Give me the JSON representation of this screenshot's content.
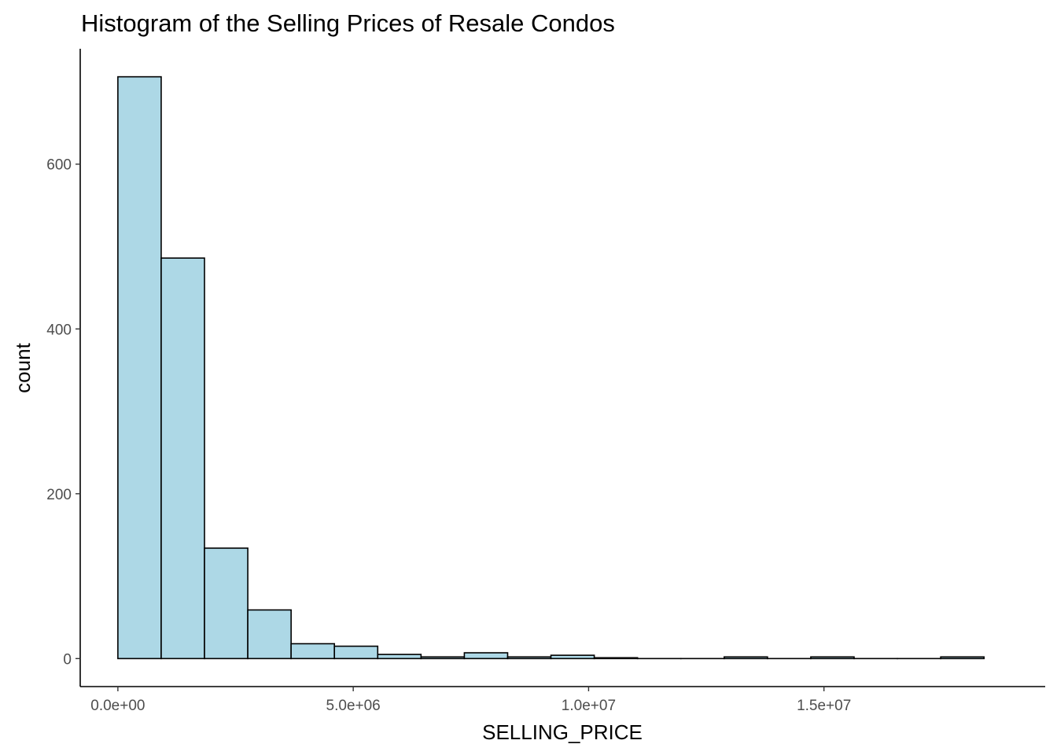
{
  "chart_data": {
    "type": "bar",
    "title": "Histogram of the Selling Prices of Resale Condos",
    "xlabel": "SELLING_PRICE",
    "ylabel": "count",
    "fill_color": "#ADD8E6",
    "outline_color": "#000000",
    "grid": false,
    "legend": "none",
    "bin_width": 920000,
    "xlim": [
      -800000,
      19700000
    ],
    "ylim": [
      -34,
      740
    ],
    "x_ticks": [
      {
        "value": 0,
        "label": "0.0e+00"
      },
      {
        "value": 5000000,
        "label": "5.0e+06"
      },
      {
        "value": 10000000,
        "label": "1.0e+07"
      },
      {
        "value": 15000000,
        "label": "1.5e+07"
      }
    ],
    "y_ticks": [
      {
        "value": 0,
        "label": "0"
      },
      {
        "value": 200,
        "label": "200"
      },
      {
        "value": 400,
        "label": "400"
      },
      {
        "value": 600,
        "label": "600"
      }
    ],
    "bins": [
      {
        "x0": 0,
        "x1": 920000,
        "count": 706
      },
      {
        "x0": 920000,
        "x1": 1840000,
        "count": 486
      },
      {
        "x0": 1840000,
        "x1": 2760000,
        "count": 134
      },
      {
        "x0": 2760000,
        "x1": 3680000,
        "count": 59
      },
      {
        "x0": 3680000,
        "x1": 4600000,
        "count": 18
      },
      {
        "x0": 4600000,
        "x1": 5520000,
        "count": 15
      },
      {
        "x0": 5520000,
        "x1": 6440000,
        "count": 5
      },
      {
        "x0": 6440000,
        "x1": 7360000,
        "count": 2
      },
      {
        "x0": 7360000,
        "x1": 8280000,
        "count": 7
      },
      {
        "x0": 8280000,
        "x1": 9200000,
        "count": 2
      },
      {
        "x0": 9200000,
        "x1": 10120000,
        "count": 4
      },
      {
        "x0": 10120000,
        "x1": 11040000,
        "count": 1
      },
      {
        "x0": 11040000,
        "x1": 11960000,
        "count": 0
      },
      {
        "x0": 11960000,
        "x1": 12880000,
        "count": 0
      },
      {
        "x0": 12880000,
        "x1": 13800000,
        "count": 2
      },
      {
        "x0": 13800000,
        "x1": 14720000,
        "count": 0
      },
      {
        "x0": 14720000,
        "x1": 15640000,
        "count": 2
      },
      {
        "x0": 15640000,
        "x1": 16560000,
        "count": 0
      },
      {
        "x0": 16560000,
        "x1": 17480000,
        "count": 0
      },
      {
        "x0": 17480000,
        "x1": 18400000,
        "count": 2
      }
    ]
  }
}
